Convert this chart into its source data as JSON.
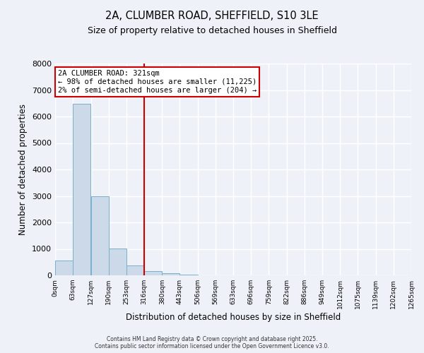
{
  "title": "2A, CLUMBER ROAD, SHEFFIELD, S10 3LE",
  "subtitle": "Size of property relative to detached houses in Sheffield",
  "xlabel": "Distribution of detached houses by size in Sheffield",
  "ylabel": "Number of detached properties",
  "bar_color": "#ccd9e8",
  "bar_edge_color": "#7aafc8",
  "background_color": "#eef2f8",
  "plot_bg_color": "#eef2f8",
  "grid_color": "#ffffff",
  "annotation_box_color": "#cc0000",
  "vline_color": "#cc0000",
  "vline_x": 316,
  "annotation_title": "2A CLUMBER ROAD: 321sqm",
  "annotation_line1": "← 98% of detached houses are smaller (11,225)",
  "annotation_line2": "2% of semi-detached houses are larger (204) →",
  "bin_edges": [
    0,
    63,
    127,
    190,
    253,
    316,
    380,
    443,
    506,
    569,
    633,
    696,
    759,
    822,
    886,
    949,
    1012,
    1075,
    1139,
    1202,
    1265
  ],
  "bin_values": [
    550,
    6480,
    2980,
    1010,
    380,
    155,
    75,
    40,
    0,
    0,
    0,
    0,
    0,
    0,
    0,
    0,
    0,
    0,
    0,
    0
  ],
  "ylim": [
    0,
    8000
  ],
  "yticks": [
    0,
    1000,
    2000,
    3000,
    4000,
    5000,
    6000,
    7000,
    8000
  ],
  "tick_labels": [
    "0sqm",
    "63sqm",
    "127sqm",
    "190sqm",
    "253sqm",
    "316sqm",
    "380sqm",
    "443sqm",
    "506sqm",
    "569sqm",
    "633sqm",
    "696sqm",
    "759sqm",
    "822sqm",
    "886sqm",
    "949sqm",
    "1012sqm",
    "1075sqm",
    "1139sqm",
    "1202sqm",
    "1265sqm"
  ],
  "footer_line1": "Contains HM Land Registry data © Crown copyright and database right 2025.",
  "footer_line2": "Contains public sector information licensed under the Open Government Licence v3.0."
}
